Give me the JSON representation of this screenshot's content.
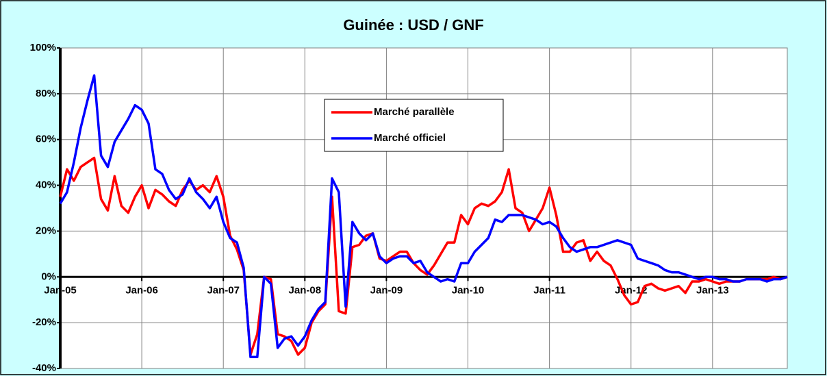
{
  "chart_data": {
    "type": "line",
    "title": "Guinée : USD / GNF",
    "categories": [
      "Jan-05",
      null,
      null,
      null,
      null,
      null,
      null,
      null,
      null,
      null,
      null,
      null,
      "Jan-06",
      null,
      null,
      null,
      null,
      null,
      null,
      null,
      null,
      null,
      null,
      null,
      "Jan-07",
      null,
      null,
      null,
      null,
      null,
      null,
      null,
      null,
      null,
      null,
      null,
      "Jan-08",
      null,
      null,
      null,
      null,
      null,
      null,
      null,
      null,
      null,
      null,
      null,
      "Jan-09",
      null,
      null,
      null,
      null,
      null,
      null,
      null,
      null,
      null,
      null,
      null,
      "Jan-10",
      null,
      null,
      null,
      null,
      null,
      null,
      null,
      null,
      null,
      null,
      null,
      "Jan-11",
      null,
      null,
      null,
      null,
      null,
      null,
      null,
      null,
      null,
      null,
      null,
      "Jan-12",
      null,
      null,
      null,
      null,
      null,
      null,
      null,
      null,
      null,
      null,
      null,
      "Jan-13",
      null,
      null,
      null,
      null,
      null,
      null,
      null,
      null,
      null,
      null,
      null
    ],
    "series": [
      {
        "name": "Marché parallèle",
        "color": "#ff0000",
        "values": [
          35,
          47,
          42,
          48,
          50,
          52,
          34,
          29,
          44,
          31,
          28,
          35,
          40,
          30,
          38,
          36,
          33,
          31,
          38,
          42,
          38,
          40,
          37,
          44,
          35,
          18,
          12,
          3,
          -34,
          -25,
          0,
          -1,
          -25,
          -26,
          -28,
          -34,
          -31,
          -20,
          -15,
          -12,
          35,
          -15,
          -16,
          13,
          14,
          18,
          19,
          8,
          7,
          9,
          11,
          11,
          6,
          3,
          1,
          5,
          10,
          15,
          15,
          27,
          23,
          30,
          32,
          31,
          33,
          37,
          47,
          30,
          28,
          20,
          25,
          30,
          39,
          27,
          11,
          11,
          15,
          16,
          7,
          11,
          7,
          5,
          -1,
          -8,
          -12,
          -11,
          -4,
          -3,
          -5,
          -6,
          -5,
          -4,
          -7,
          -2,
          -2,
          -1,
          -2,
          -3,
          -2,
          -2,
          -2,
          -1,
          -1,
          -1,
          -1,
          0,
          -1,
          0
        ]
      },
      {
        "name": "Marché officiel",
        "color": "#0000ff",
        "values": [
          32,
          37,
          50,
          65,
          77,
          88,
          53,
          48,
          59,
          64,
          69,
          75,
          73,
          67,
          47,
          45,
          38,
          34,
          36,
          43,
          37,
          34,
          30,
          35,
          24,
          17,
          15,
          4,
          -35,
          -35,
          0,
          -3,
          -31,
          -27,
          -26,
          -30,
          -26,
          -19,
          -14,
          -11,
          43,
          37,
          -13,
          24,
          19,
          16,
          19,
          9,
          6,
          8,
          9,
          9,
          6,
          7,
          2,
          0,
          -2,
          -1,
          -2,
          6,
          6,
          11,
          14,
          17,
          25,
          24,
          27,
          27,
          27,
          26,
          25,
          23,
          24,
          22,
          17,
          13,
          11,
          12,
          13,
          13,
          14,
          15,
          16,
          15,
          14,
          8,
          7,
          6,
          5,
          3,
          2,
          2,
          1,
          0,
          -1,
          0,
          0,
          -1,
          -1,
          -2,
          -2,
          -1,
          -1,
          -1,
          -2,
          -1,
          -1,
          0
        ]
      }
    ],
    "ylim": [
      -40,
      100
    ],
    "yticks": [
      {
        "value": -40,
        "label": "-40%"
      },
      {
        "value": -20,
        "label": "-20%"
      },
      {
        "value": 0,
        "label": "0%"
      },
      {
        "value": 20,
        "label": "20%"
      },
      {
        "value": 40,
        "label": "40%"
      },
      {
        "value": 60,
        "label": "60%"
      },
      {
        "value": 80,
        "label": "80%"
      },
      {
        "value": 100,
        "label": "100%"
      }
    ],
    "grid": true
  }
}
